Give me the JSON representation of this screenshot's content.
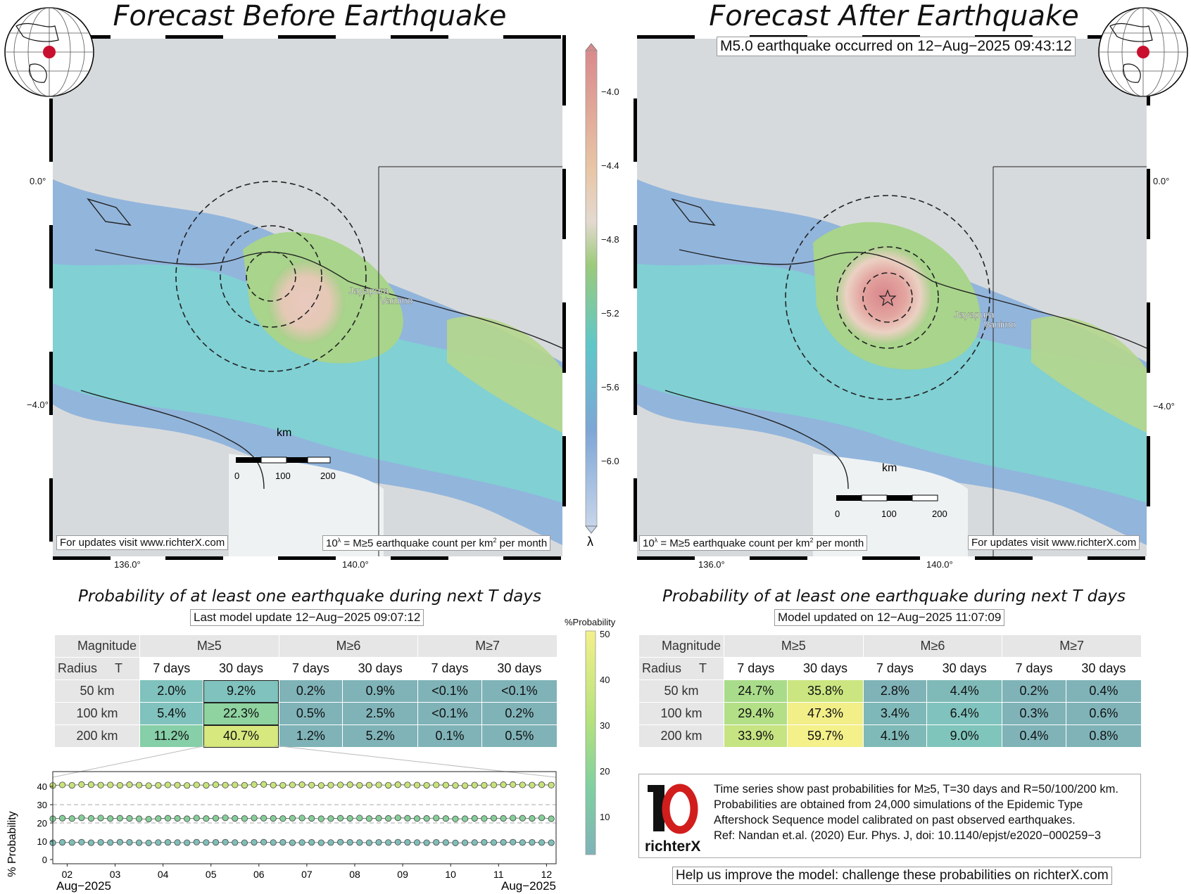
{
  "left": {
    "title": "Forecast Before Earthquake",
    "lat_labels": [
      "0.0°",
      "−4.0°"
    ],
    "lon_labels": [
      "136.0°",
      "140.0°"
    ],
    "city_labels": [
      "Jayapura",
      "Vanimo"
    ],
    "scale_unit": "km",
    "scale_ticks": [
      "0",
      "100",
      "200"
    ],
    "url_note": "For updates visit www.richterX.com",
    "lambda_note": "10",
    "lambda_note_exp": "λ",
    "lambda_note_rest": " = M≥5 earthquake count per km",
    "lambda_note_sq": "2",
    "lambda_note_tail": " per month"
  },
  "right": {
    "title": "Forecast After Earthquake",
    "event_note": "M5.0 earthquake occurred on 12−Aug−2025 09:43:12",
    "lat_labels": [
      "0.0°",
      "−4.0°"
    ],
    "lon_labels": [
      "136.0°",
      "140.0°"
    ],
    "city_labels": [
      "Jayapura",
      "Vanimo"
    ],
    "scale_unit": "km",
    "scale_ticks": [
      "0",
      "100",
      "200"
    ],
    "url_note": "For updates visit www.richterX.com",
    "lambda_note": "10",
    "lambda_note_exp": "λ",
    "lambda_note_rest": " = M≥5 earthquake count per km",
    "lambda_note_sq": "2",
    "lambda_note_tail": " per month"
  },
  "colorbar": {
    "ticks": [
      "−4.0",
      "−4.4",
      "−4.8",
      "−5.2",
      "−5.6",
      "−6.0"
    ],
    "label": "λ"
  },
  "prob_colorbar": {
    "label": "%Probability",
    "ticks": [
      "50",
      "40",
      "30",
      "20",
      "10"
    ]
  },
  "left_table": {
    "heading": "Probability of at least one earthquake during next T days",
    "update_note": "Last model update 12−Aug−2025 09:07:12",
    "corner_top": "Magnitude",
    "corner_radius": "Radius",
    "corner_t": "T",
    "magnitudes": [
      "M≥5",
      "M≥6",
      "M≥7"
    ],
    "periods": [
      "7 days",
      "30 days",
      "7 days",
      "30 days",
      "7 days",
      "30 days"
    ],
    "rows": [
      {
        "radius": "50 km",
        "cells": [
          "2.0%",
          "9.2%",
          "0.2%",
          "0.9%",
          "<0.1%",
          "<0.1%"
        ]
      },
      {
        "radius": "100 km",
        "cells": [
          "5.4%",
          "22.3%",
          "0.5%",
          "2.5%",
          "<0.1%",
          "0.2%"
        ]
      },
      {
        "radius": "200 km",
        "cells": [
          "11.2%",
          "40.7%",
          "1.2%",
          "5.2%",
          "0.1%",
          "0.5%"
        ]
      }
    ]
  },
  "right_table": {
    "heading": "Probability of at least one earthquake during next T days",
    "update_note": "Model updated on 12−Aug−2025 11:07:09",
    "corner_top": "Magnitude",
    "corner_radius": "Radius",
    "corner_t": "T",
    "magnitudes": [
      "M≥5",
      "M≥6",
      "M≥7"
    ],
    "periods": [
      "7 days",
      "30 days",
      "7 days",
      "30 days",
      "7 days",
      "30 days"
    ],
    "rows": [
      {
        "radius": "50 km",
        "cells": [
          "24.7%",
          "35.8%",
          "2.8%",
          "4.4%",
          "0.2%",
          "0.4%"
        ]
      },
      {
        "radius": "100 km",
        "cells": [
          "29.4%",
          "47.3%",
          "3.4%",
          "6.4%",
          "0.3%",
          "0.6%"
        ]
      },
      {
        "radius": "200 km",
        "cells": [
          "33.9%",
          "59.7%",
          "4.1%",
          "9.0%",
          "0.4%",
          "0.8%"
        ]
      }
    ]
  },
  "info": {
    "lines": [
      "Time series show past probabilities for M≥5, T=30 days and R=50/100/200 km.",
      "Probabilities are obtained from 24,000 simulations of the Epidemic Type",
      "Aftershock Sequence model calibrated on past observed earthquakes.",
      "Ref: Nandan et.al. (2020) Eur. Phys. J, doi: 10.1140/epjst/e2020−000259−3"
    ],
    "logo_text": "richterX",
    "help": "Help us improve the model: challenge these probabilities on richterX.com"
  },
  "colors": {
    "high": "#d98a8c",
    "mid": "#9ccb7a",
    "low": "#7ea6d6",
    "lowest": "#5ec7c9",
    "prob_low": "#7fb3b8",
    "prob_high": "#f4f08a",
    "logo_red": "#d21d1d"
  },
  "chart_data": {
    "type": "line",
    "ylabel": "% Probability",
    "ylim": [
      0,
      45
    ],
    "yticks": [
      0,
      10,
      20,
      30,
      40
    ],
    "x_tick_labels": [
      "02",
      "03",
      "04",
      "05",
      "06",
      "07",
      "08",
      "09",
      "10",
      "11",
      "12"
    ],
    "x_start_label": "Aug−2025",
    "x_end_label": "Aug−2025",
    "x_range": [
      1.7,
      12.2
    ],
    "x": [
      1.7,
      1.9,
      2.1,
      2.3,
      2.5,
      2.7,
      2.9,
      3.1,
      3.3,
      3.5,
      3.7,
      3.9,
      4.1,
      4.3,
      4.5,
      4.7,
      4.9,
      5.1,
      5.3,
      5.5,
      5.7,
      5.9,
      6.1,
      6.3,
      6.5,
      6.7,
      6.9,
      7.1,
      7.3,
      7.5,
      7.7,
      7.9,
      8.1,
      8.3,
      8.5,
      8.7,
      8.9,
      9.1,
      9.3,
      9.5,
      9.7,
      9.9,
      10.1,
      10.3,
      10.5,
      10.7,
      10.9,
      11.1,
      11.3,
      11.5,
      11.7,
      11.9,
      12.1
    ],
    "series": [
      {
        "values": [
          40.5,
          40.8,
          40.6,
          41.0,
          40.9,
          40.7,
          40.8,
          40.6,
          40.9,
          40.7,
          40.4,
          40.6,
          40.8,
          40.7,
          40.5,
          40.8,
          40.6,
          40.9,
          40.7,
          40.8,
          40.6,
          41.0,
          41.1,
          40.7,
          40.6,
          40.8,
          40.9,
          40.7,
          40.5,
          40.7,
          40.8,
          40.9,
          40.6,
          40.7,
          40.8,
          40.6,
          40.9,
          40.8,
          40.7,
          40.6,
          40.8,
          40.7,
          40.5,
          40.4,
          40.7,
          40.6,
          40.8,
          40.9,
          41.0,
          40.8,
          40.7,
          40.9,
          40.7
        ],
        "color": "#c7e37a"
      },
      {
        "values": [
          22.3,
          22.6,
          22.4,
          22.8,
          22.5,
          22.7,
          22.4,
          22.6,
          22.5,
          22.3,
          22.1,
          22.4,
          22.6,
          22.5,
          22.3,
          22.7,
          22.4,
          22.6,
          22.8,
          22.5,
          22.4,
          22.7,
          22.6,
          22.5,
          22.4,
          22.6,
          22.7,
          22.5,
          22.3,
          22.4,
          22.6,
          22.5,
          22.7,
          22.4,
          22.6,
          22.5,
          22.8,
          22.6,
          22.4,
          22.5,
          22.7,
          22.4,
          22.2,
          22.3,
          22.5,
          22.4,
          22.6,
          22.5,
          22.7,
          22.6,
          22.5,
          22.8,
          22.3
        ],
        "color": "#86cf9a"
      },
      {
        "values": [
          9.2,
          9.4,
          9.3,
          9.5,
          9.2,
          9.4,
          9.3,
          9.5,
          9.4,
          9.2,
          9.1,
          9.3,
          9.4,
          9.3,
          9.2,
          9.5,
          9.3,
          9.4,
          9.5,
          9.3,
          9.2,
          9.4,
          9.5,
          9.3,
          9.4,
          9.2,
          9.3,
          9.4,
          9.2,
          9.3,
          9.5,
          9.4,
          9.3,
          9.2,
          9.4,
          9.3,
          9.5,
          9.4,
          9.3,
          9.2,
          9.4,
          9.3,
          9.1,
          9.2,
          9.3,
          9.4,
          9.3,
          9.4,
          9.5,
          9.3,
          9.4,
          9.3,
          9.2
        ],
        "color": "#7fbdb8"
      }
    ]
  }
}
